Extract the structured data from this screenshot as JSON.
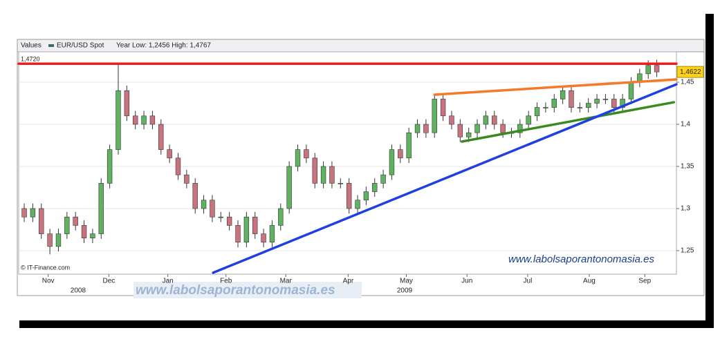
{
  "chart_data": {
    "type": "candlestick",
    "header": {
      "name": "Values",
      "series_name": "EUR/USD Spot",
      "range_text": "Year Low: 1,2456 High: 1,4767"
    },
    "source": "© IT-Finance.com",
    "watermark": "www.labolsaporantonomasia.es",
    "open": [
      1.3,
      1.29,
      1.3,
      1.27,
      1.255,
      1.27,
      1.29,
      1.28,
      1.265,
      1.27,
      1.33,
      1.37,
      1.44,
      1.41,
      1.4,
      1.41,
      1.4,
      1.37,
      1.36,
      1.34,
      1.33,
      1.3,
      1.31,
      1.29,
      1.29,
      1.28,
      1.26,
      1.29,
      1.27,
      1.26,
      1.28,
      1.3,
      1.35,
      1.37,
      1.36,
      1.33,
      1.35,
      1.33,
      1.33,
      1.3,
      1.31,
      1.32,
      1.33,
      1.34,
      1.37,
      1.36,
      1.39,
      1.4,
      1.39,
      1.43,
      1.41,
      1.4,
      1.385,
      1.39,
      1.4,
      1.41,
      1.4,
      1.39,
      1.39,
      1.4,
      1.41,
      1.42,
      1.42,
      1.43,
      1.44,
      1.42,
      1.42,
      1.425,
      1.43,
      1.43,
      1.42,
      1.43,
      1.45,
      1.46,
      1.47
    ],
    "high": [
      1.306,
      1.306,
      1.306,
      1.276,
      1.276,
      1.296,
      1.296,
      1.286,
      1.276,
      1.336,
      1.376,
      1.472,
      1.446,
      1.416,
      1.416,
      1.416,
      1.406,
      1.376,
      1.366,
      1.346,
      1.336,
      1.316,
      1.316,
      1.296,
      1.296,
      1.286,
      1.296,
      1.296,
      1.276,
      1.286,
      1.306,
      1.356,
      1.376,
      1.376,
      1.366,
      1.356,
      1.356,
      1.336,
      1.336,
      1.316,
      1.326,
      1.336,
      1.346,
      1.376,
      1.376,
      1.396,
      1.406,
      1.406,
      1.436,
      1.436,
      1.416,
      1.406,
      1.396,
      1.406,
      1.416,
      1.416,
      1.406,
      1.396,
      1.406,
      1.416,
      1.426,
      1.426,
      1.436,
      1.446,
      1.446,
      1.426,
      1.431,
      1.436,
      1.436,
      1.436,
      1.436,
      1.456,
      1.466,
      1.476,
      1.4767
    ],
    "low": [
      1.284,
      1.284,
      1.264,
      1.2456,
      1.249,
      1.264,
      1.274,
      1.259,
      1.259,
      1.264,
      1.324,
      1.364,
      1.404,
      1.394,
      1.394,
      1.394,
      1.364,
      1.354,
      1.334,
      1.324,
      1.294,
      1.294,
      1.284,
      1.284,
      1.274,
      1.254,
      1.254,
      1.264,
      1.254,
      1.254,
      1.274,
      1.294,
      1.344,
      1.354,
      1.324,
      1.324,
      1.324,
      1.324,
      1.294,
      1.294,
      1.304,
      1.314,
      1.324,
      1.334,
      1.354,
      1.354,
      1.384,
      1.384,
      1.384,
      1.404,
      1.394,
      1.379,
      1.379,
      1.384,
      1.394,
      1.394,
      1.384,
      1.384,
      1.384,
      1.394,
      1.404,
      1.414,
      1.414,
      1.424,
      1.414,
      1.414,
      1.414,
      1.419,
      1.424,
      1.414,
      1.414,
      1.424,
      1.444,
      1.454,
      1.4562
    ],
    "close": [
      1.29,
      1.3,
      1.27,
      1.255,
      1.27,
      1.29,
      1.28,
      1.265,
      1.27,
      1.33,
      1.37,
      1.44,
      1.41,
      1.4,
      1.41,
      1.4,
      1.37,
      1.36,
      1.34,
      1.33,
      1.3,
      1.31,
      1.29,
      1.29,
      1.28,
      1.26,
      1.29,
      1.27,
      1.26,
      1.28,
      1.3,
      1.35,
      1.37,
      1.36,
      1.33,
      1.35,
      1.33,
      1.33,
      1.3,
      1.31,
      1.32,
      1.33,
      1.34,
      1.37,
      1.36,
      1.39,
      1.4,
      1.39,
      1.43,
      1.41,
      1.4,
      1.385,
      1.39,
      1.4,
      1.41,
      1.4,
      1.39,
      1.39,
      1.4,
      1.41,
      1.42,
      1.42,
      1.43,
      1.44,
      1.42,
      1.42,
      1.425,
      1.43,
      1.43,
      1.42,
      1.43,
      1.45,
      1.46,
      1.47,
      1.4622
    ],
    "up_color": "#5fb25f",
    "down_color": "#c9737f",
    "xlim": [
      -0.65,
      76.3
    ],
    "xticks": [
      {
        "value": 2.8,
        "label": "Nov"
      },
      {
        "value": 9.9,
        "label": "Dec"
      },
      {
        "value": 16.8,
        "label": "Jan"
      },
      {
        "value": 23.6,
        "label": "Feb"
      },
      {
        "value": 30.6,
        "label": "Mar"
      },
      {
        "value": 37.9,
        "label": "Apr"
      },
      {
        "value": 44.7,
        "label": "May"
      },
      {
        "value": 51.8,
        "label": "Jun"
      },
      {
        "value": 58.9,
        "label": "Jul"
      },
      {
        "value": 66.1,
        "label": "Aug"
      },
      {
        "value": 72.6,
        "label": "Sep"
      }
    ],
    "year_ticks": [
      {
        "value": 6.3,
        "label": "2008"
      },
      {
        "value": 44.5,
        "label": "2009"
      }
    ],
    "ylim": [
      1.2221,
      1.4861
    ],
    "yticks": [
      {
        "value": 1.25,
        "label": "1,25"
      },
      {
        "value": 1.3,
        "label": "1,3"
      },
      {
        "value": 1.35,
        "label": "1,35"
      },
      {
        "value": 1.4,
        "label": "1,4"
      },
      {
        "value": 1.45,
        "label": "1,45"
      }
    ],
    "grid": true,
    "high_marker": {
      "value": 1.472,
      "label": "1,4720"
    },
    "last_price": {
      "value": 1.4622,
      "label": "1,4622"
    },
    "trendlines": [
      {
        "color": "#ee1c1c",
        "x": [
          -0.65,
          76.3
        ],
        "y": [
          1.472,
          1.472
        ]
      },
      {
        "color": "#f47a2a",
        "x": [
          48.0,
          76.3
        ],
        "y": [
          1.4352,
          1.4533
        ]
      },
      {
        "color": "#3a8a22",
        "x": [
          51.2,
          76.0
        ],
        "y": [
          1.3795,
          1.4262
        ]
      },
      {
        "color": "#1f3fe0",
        "x": [
          22.1,
          76.3
        ],
        "y": [
          1.2238,
          1.4475
        ]
      }
    ]
  }
}
